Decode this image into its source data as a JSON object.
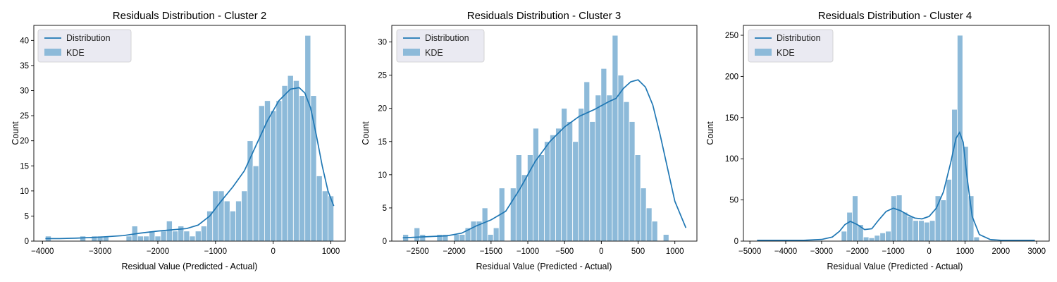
{
  "chart_data": [
    {
      "type": "bar",
      "title": "Residuals Distribution - Cluster 2",
      "xlabel": "Residual Value (Predicted - Actual)",
      "ylabel": "Count",
      "xlim": [
        -4150,
        1250
      ],
      "ylim": [
        0,
        43
      ],
      "xticks": [
        -4000,
        -3000,
        -2000,
        -1000,
        0,
        1000
      ],
      "yticks": [
        0,
        5,
        10,
        15,
        20,
        25,
        30,
        35,
        40
      ],
      "legend": {
        "position": "top-left",
        "entries": [
          "Distribution",
          "KDE"
        ]
      },
      "bin_start": -3950,
      "bin_width": 100,
      "values": [
        1,
        0,
        0,
        0,
        0,
        0,
        1,
        0,
        1,
        1,
        1,
        0,
        0,
        0,
        1,
        3,
        1,
        1,
        2,
        1,
        2,
        4,
        2,
        3,
        2,
        1,
        2,
        3,
        6,
        10,
        10,
        8,
        6,
        8,
        10,
        20,
        15,
        27,
        28,
        26,
        28,
        31,
        33,
        32,
        29,
        41,
        29,
        13,
        10,
        9
      ],
      "kde": {
        "x": [
          -3950,
          -3700,
          -3400,
          -3000,
          -2600,
          -2300,
          -2000,
          -1700,
          -1500,
          -1300,
          -1100,
          -900,
          -700,
          -500,
          -300,
          -100,
          100,
          300,
          450,
          550,
          650,
          750,
          850,
          950,
          1050
        ],
        "y": [
          0.5,
          0.5,
          0.6,
          0.8,
          1.1,
          1.6,
          2.0,
          2.3,
          2.5,
          3.2,
          5.0,
          8.0,
          10.8,
          14.0,
          19.0,
          24.0,
          28.0,
          30.3,
          30.6,
          29.5,
          26.5,
          21.0,
          15.0,
          10.0,
          7.0
        ]
      },
      "series": [
        {
          "name": "Distribution",
          "role": "line",
          "color": "#1f77b4"
        },
        {
          "name": "KDE",
          "role": "bars",
          "color": "#8dbad9"
        }
      ]
    },
    {
      "type": "bar",
      "title": "Residuals Distribution - Cluster 3",
      "xlabel": "Residual Value (Predicted - Actual)",
      "ylabel": "Count",
      "xlim": [
        -2850,
        1300
      ],
      "ylim": [
        0,
        32.5
      ],
      "xticks": [
        -2500,
        -2000,
        -1500,
        -1000,
        -500,
        0,
        500,
        1000
      ],
      "yticks": [
        0,
        5,
        10,
        15,
        20,
        25,
        30
      ],
      "legend": {
        "position": "top-left",
        "entries": [
          "Distribution",
          "KDE"
        ]
      },
      "bin_start": -2700,
      "bin_width": 77,
      "values": [
        1,
        0,
        2,
        1,
        0,
        0,
        1,
        1,
        0,
        1,
        1,
        2,
        3,
        3,
        5,
        1,
        2,
        8,
        0,
        8,
        13,
        10,
        13,
        17,
        13,
        15,
        16,
        17,
        20,
        18,
        15,
        20,
        24,
        18,
        22,
        26,
        22,
        31,
        25,
        21,
        18,
        13,
        8,
        5,
        3,
        0,
        1
      ],
      "kde": {
        "x": [
          -2700,
          -2500,
          -2300,
          -2100,
          -1900,
          -1700,
          -1500,
          -1300,
          -1100,
          -900,
          -700,
          -500,
          -300,
          -100,
          100,
          200,
          300,
          400,
          500,
          600,
          700,
          800,
          900,
          1000,
          1150
        ],
        "y": [
          0.5,
          0.6,
          0.7,
          0.8,
          1.2,
          2.3,
          3.2,
          4.5,
          8.0,
          12.0,
          15.0,
          17.2,
          18.8,
          19.8,
          21.0,
          21.5,
          23.0,
          24.0,
          24.3,
          23.2,
          20.5,
          16.0,
          11.0,
          6.0,
          2.0
        ]
      },
      "series": [
        {
          "name": "Distribution",
          "role": "line",
          "color": "#1f77b4"
        },
        {
          "name": "KDE",
          "role": "bars",
          "color": "#8dbad9"
        }
      ]
    },
    {
      "type": "bar",
      "title": "Residuals Distribution - Cluster 4",
      "xlabel": "Residual Value (Predicted - Actual)",
      "ylabel": "Count",
      "xlim": [
        -5180,
        3350
      ],
      "ylim": [
        0,
        262
      ],
      "xticks": [
        -5000,
        -4000,
        -3000,
        -2000,
        -1000,
        0,
        1000,
        2000,
        3000
      ],
      "yticks": [
        0,
        50,
        100,
        150,
        200,
        250
      ],
      "legend": {
        "position": "top-left",
        "entries": [
          "Distribution",
          "KDE"
        ]
      },
      "bin_start": -2450,
      "bin_width": 154,
      "values": [
        12,
        35,
        55,
        20,
        5,
        4,
        7,
        10,
        12,
        55,
        56,
        35,
        30,
        25,
        25,
        23,
        25,
        55,
        50,
        75,
        160,
        250,
        115,
        55,
        5,
        0,
        0,
        1
      ],
      "kde": {
        "x": [
          -4800,
          -4000,
          -3500,
          -3000,
          -2700,
          -2500,
          -2350,
          -2200,
          -2000,
          -1800,
          -1600,
          -1400,
          -1200,
          -1000,
          -800,
          -600,
          -400,
          -200,
          0,
          200,
          400,
          600,
          750,
          850,
          950,
          1050,
          1200,
          1400,
          1700,
          2000,
          2500,
          2950
        ],
        "y": [
          1,
          1,
          1,
          2,
          5,
          12,
          20,
          24,
          20,
          14,
          15,
          26,
          36,
          40,
          37,
          32,
          28,
          27,
          30,
          40,
          60,
          95,
          125,
          132,
          120,
          80,
          30,
          8,
          2,
          1,
          1,
          1
        ]
      },
      "series": [
        {
          "name": "Distribution",
          "role": "line",
          "color": "#1f77b4"
        },
        {
          "name": "KDE",
          "role": "bars",
          "color": "#8dbad9"
        }
      ]
    }
  ]
}
